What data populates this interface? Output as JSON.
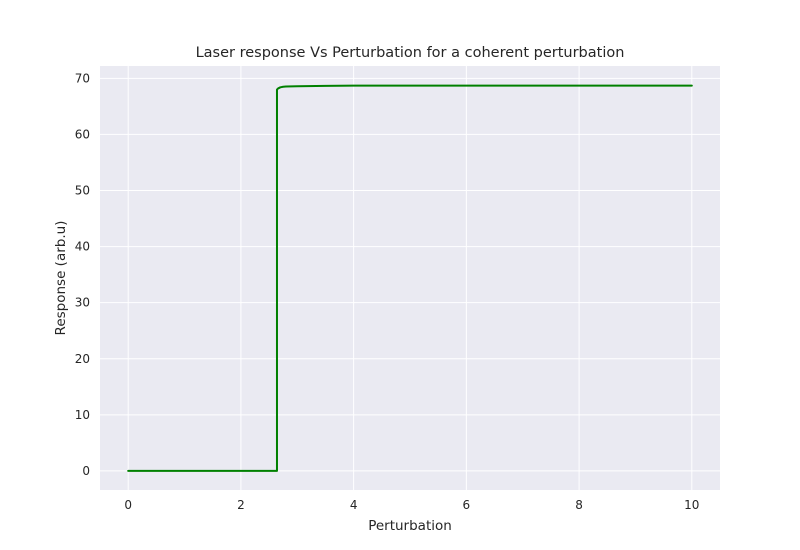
{
  "chart_data": {
    "type": "line",
    "title": "Laser response Vs Perturbation for a coherent perturbation",
    "xlabel": "Perturbation",
    "ylabel": "Response (arb.u)",
    "xlim": [
      -0.5,
      10.5
    ],
    "ylim": [
      -3.4,
      72.2
    ],
    "xticks": [
      0,
      2,
      4,
      6,
      8,
      10
    ],
    "yticks": [
      0,
      10,
      20,
      30,
      40,
      50,
      60,
      70
    ],
    "grid": true,
    "colors": {
      "background": "#eaeaf2",
      "grid": "#ffffff",
      "line": "#008000"
    },
    "series": [
      {
        "x": [
          0,
          0.5,
          1.0,
          1.5,
          2.0,
          2.5,
          2.64,
          2.64,
          2.66,
          2.7,
          2.75,
          2.8,
          3.0,
          3.5,
          4.0,
          5.0,
          6.0,
          7.0,
          8.0,
          9.0,
          10.0
        ],
        "values": [
          0,
          0,
          0,
          0,
          0,
          0,
          0,
          68.0,
          68.2,
          68.4,
          68.5,
          68.55,
          68.6,
          68.65,
          68.7,
          68.7,
          68.7,
          68.7,
          68.7,
          68.7,
          68.7
        ]
      }
    ]
  }
}
